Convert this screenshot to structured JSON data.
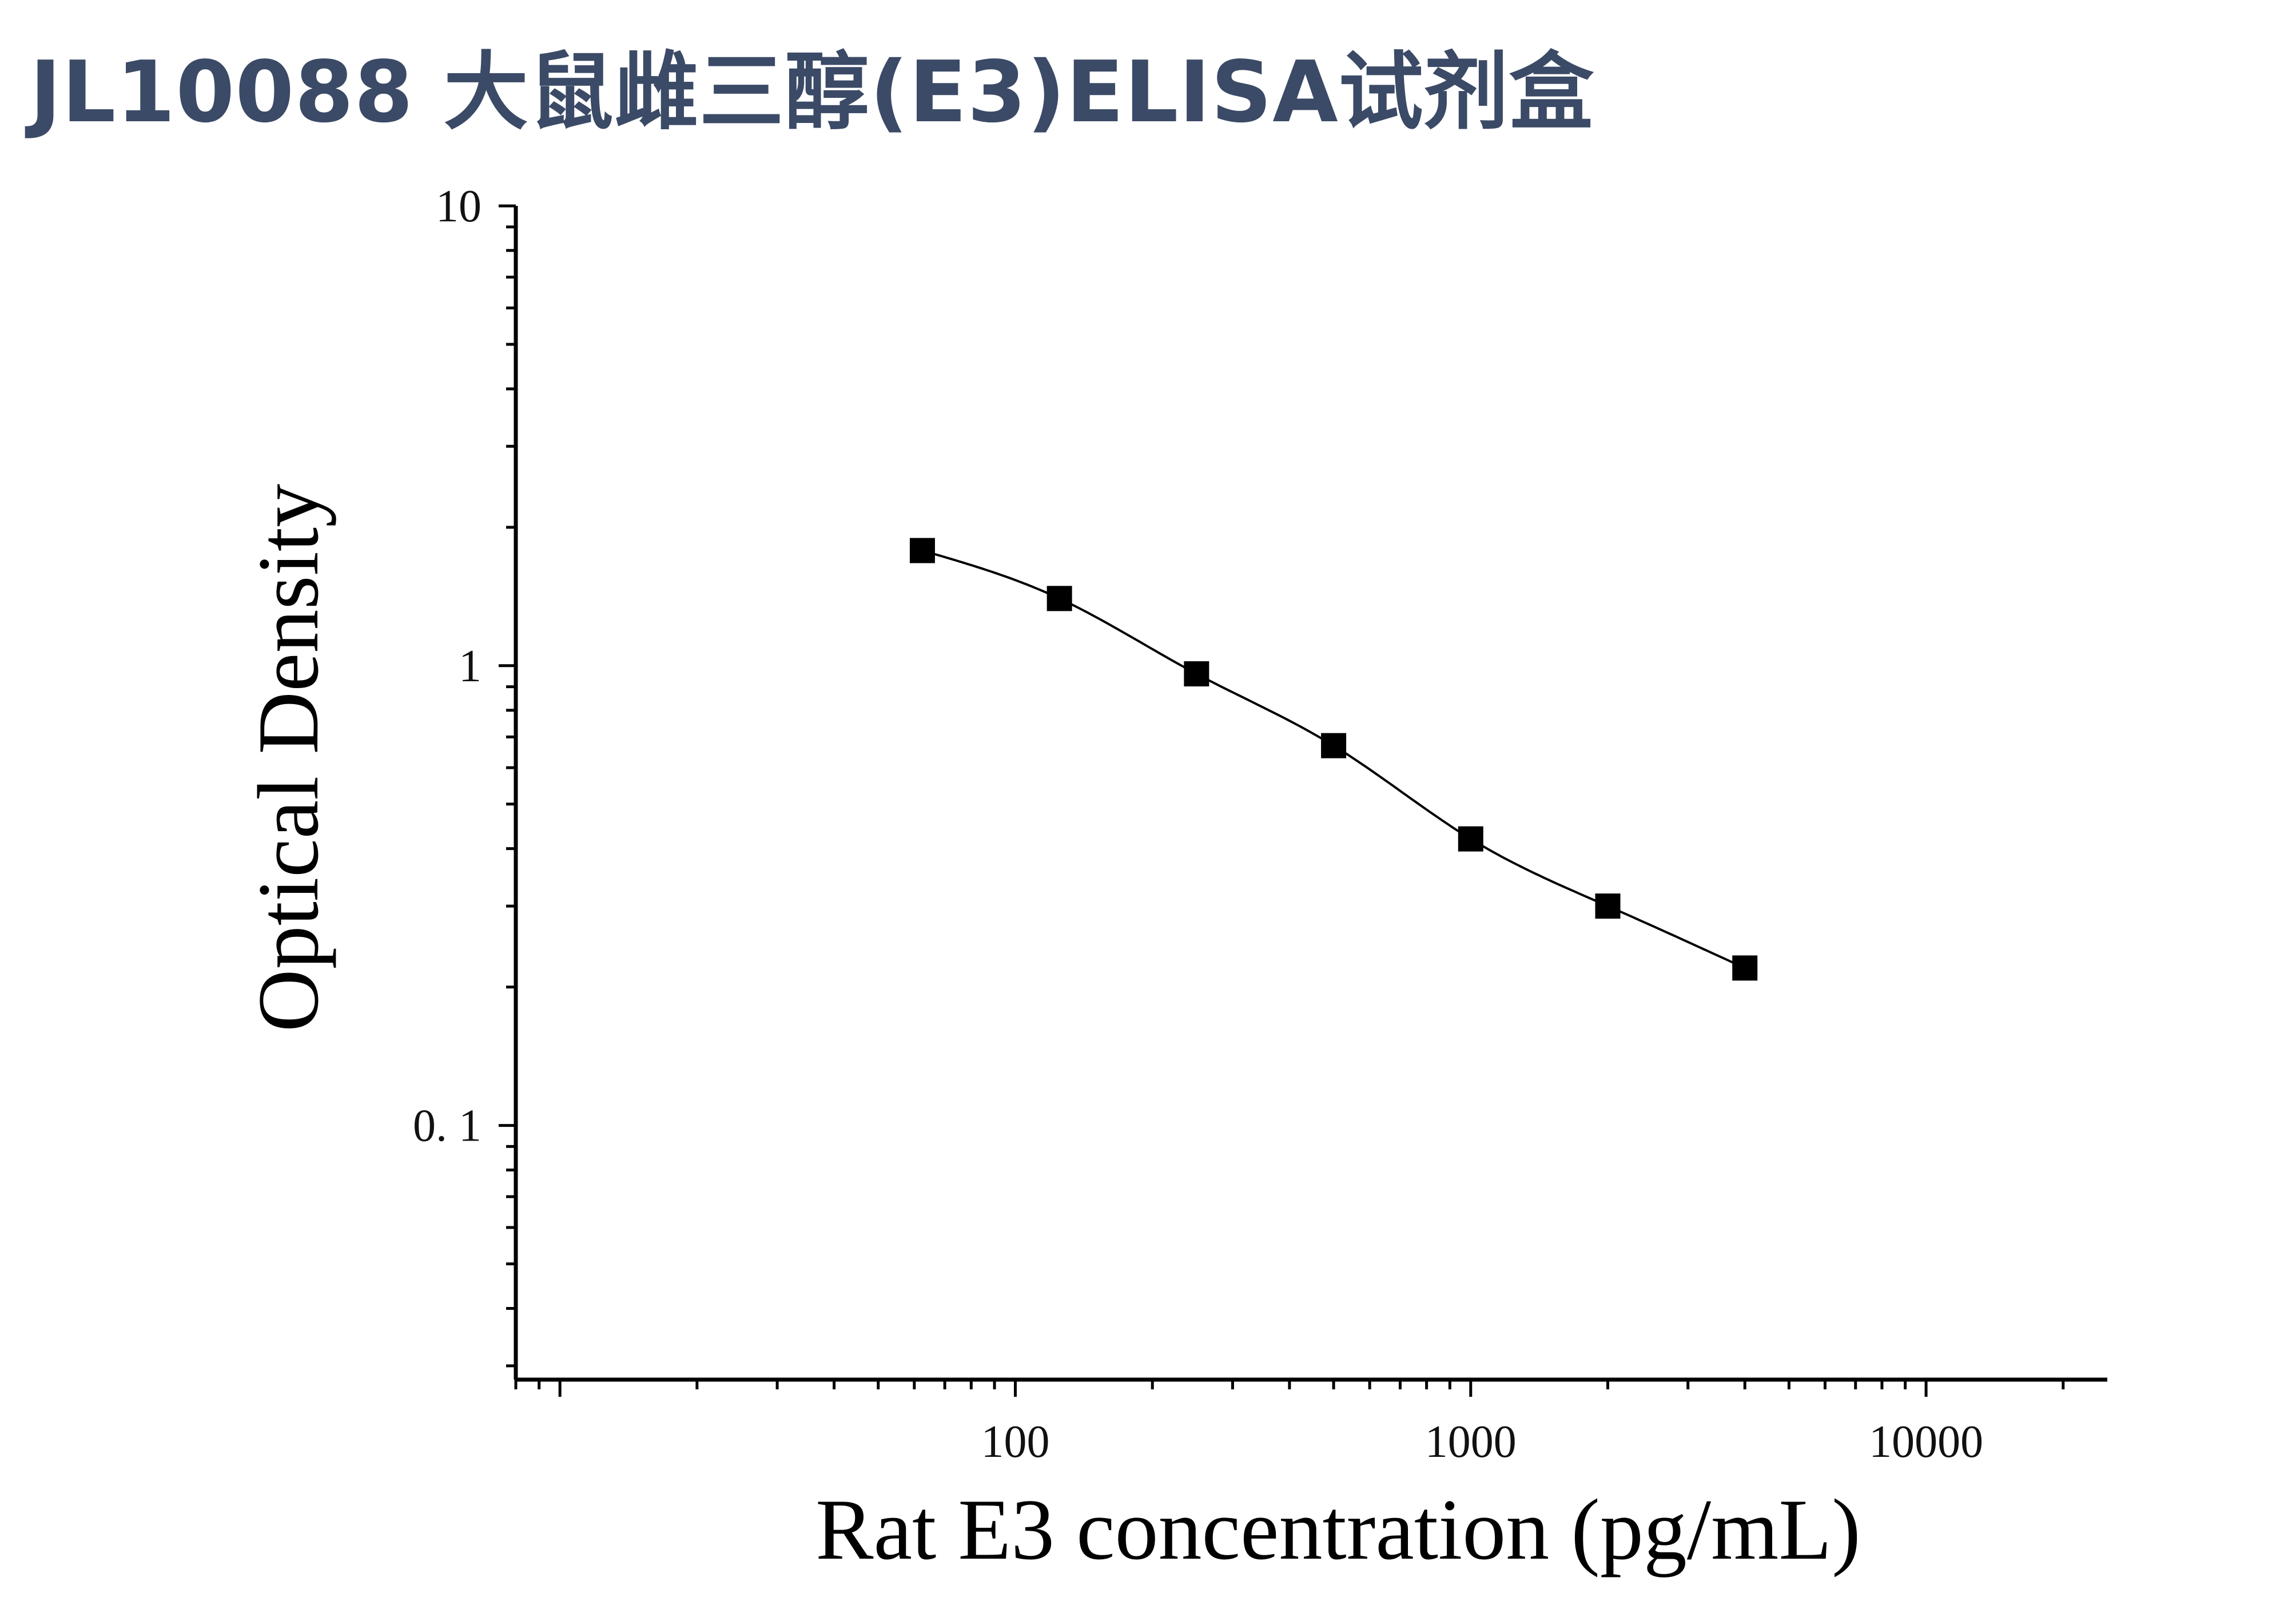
{
  "title": "JL10088 大鼠雌三醇(E3)ELISA试剂盒",
  "chart_data": {
    "type": "scatter",
    "title": "JL10088 大鼠雌三醇(E3)ELISA试剂盒",
    "xlabel": "Rat E3 concentration (pg/mL)",
    "ylabel": "Optical Density",
    "x_scale": "log",
    "y_scale": "log",
    "xlim": [
      8,
      25000
    ],
    "ylim": [
      0.028,
      10
    ],
    "x_ticks": [
      {
        "value": 100,
        "label": "100"
      },
      {
        "value": 1000,
        "label": "1000"
      },
      {
        "value": 10000,
        "label": "10000"
      }
    ],
    "y_ticks": [
      {
        "value": 10,
        "label": "10"
      },
      {
        "value": 1,
        "label": "1"
      },
      {
        "value": 0.1,
        "label": "0. 1"
      }
    ],
    "grid": false,
    "series": [
      {
        "marker": "square",
        "fit_line": "curve",
        "x": [
          62.5,
          125,
          250,
          500,
          1000,
          2000,
          4000
        ],
        "y": [
          1.78,
          1.4,
          0.96,
          0.67,
          0.42,
          0.3,
          0.22
        ]
      }
    ],
    "colors": {
      "marker": "#000000",
      "line": "#000000",
      "axis": "#000000",
      "title": "#3b4a66"
    }
  }
}
